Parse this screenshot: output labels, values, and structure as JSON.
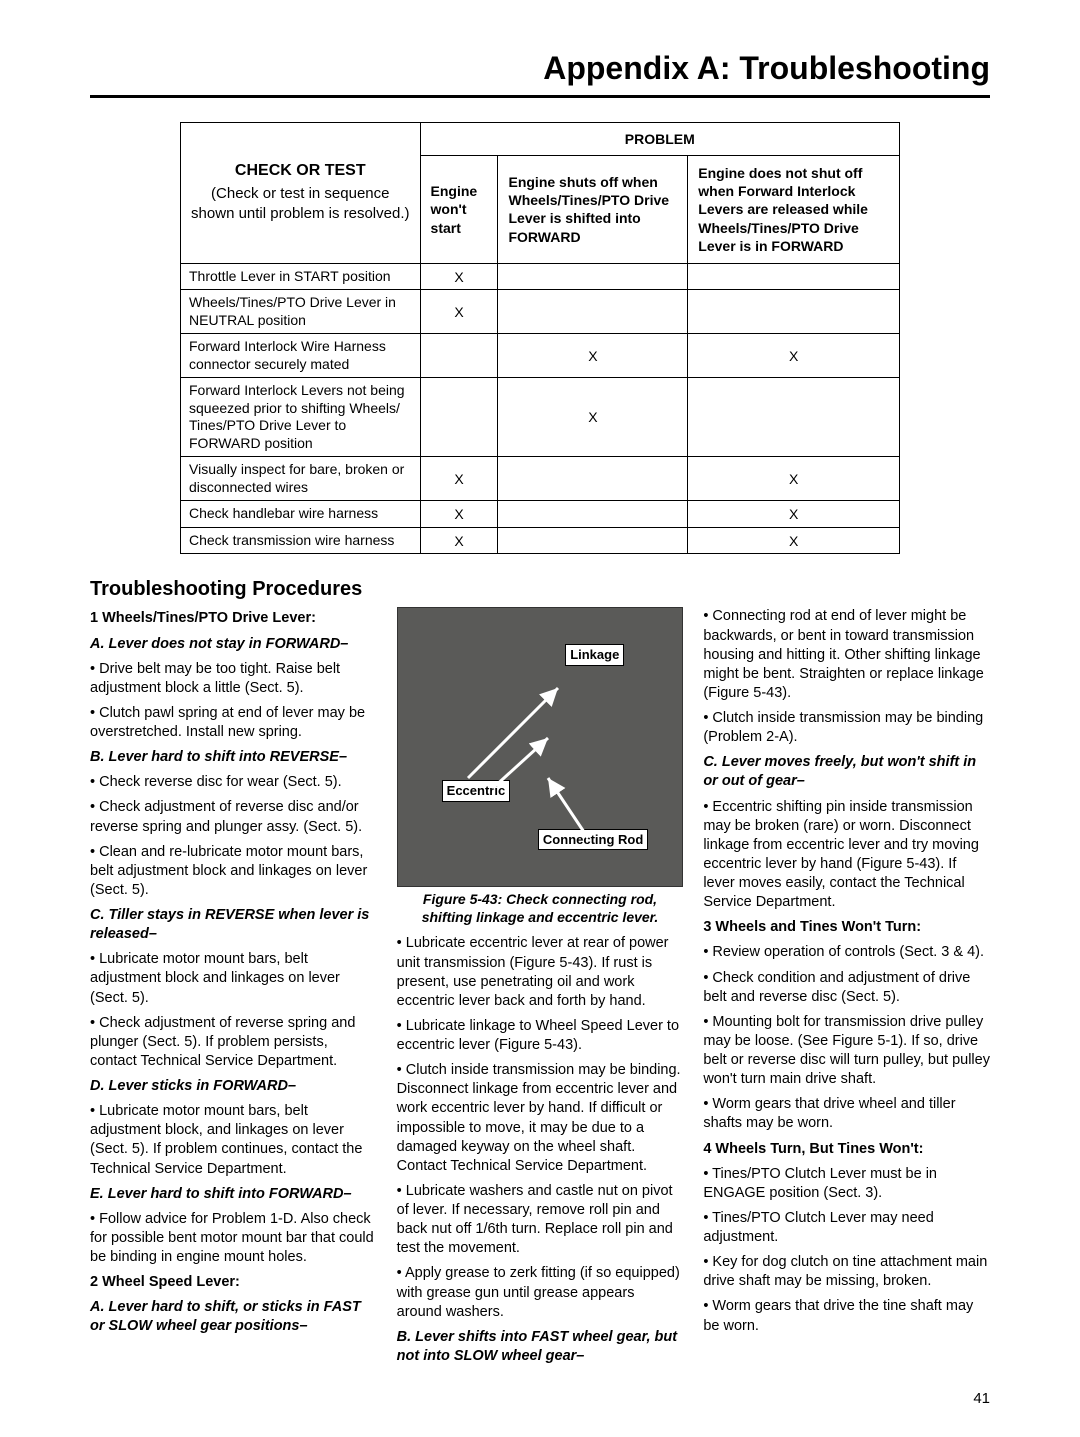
{
  "header": {
    "title": "Appendix A:  Troubleshooting",
    "page_number": "41"
  },
  "table": {
    "check_test_title": "CHECK OR TEST",
    "check_test_sub": "(Check or test in sequence shown until problem is resolved.)",
    "problem_label": "PROBLEM",
    "columns": [
      "Engine won't start",
      "Engine shuts off when Wheels/Tines/PTO Drive Lever is shifted into FORWARD",
      "Engine does not shut off when Forward Interlock Levers are released while Wheels/Tines/PTO Drive Lever is in FORWARD"
    ],
    "rows": [
      {
        "label": "Throttle Lever in START position",
        "marks": [
          "X",
          "",
          ""
        ]
      },
      {
        "label": "Wheels/Tines/PTO Drive Lever in NEUTRAL position",
        "marks": [
          "X",
          "",
          ""
        ]
      },
      {
        "label": "Forward Interlock Wire Harness connector securely mated",
        "marks": [
          "",
          "X",
          "X"
        ]
      },
      {
        "label": "Forward Interlock Levers not being squeezed prior to shifting Wheels/ Tines/PTO Drive Lever to FORWARD position",
        "marks": [
          "",
          "X",
          ""
        ]
      },
      {
        "label": "Visually inspect for bare, broken or disconnected wires",
        "marks": [
          "X",
          "",
          "X"
        ]
      },
      {
        "label": "Check handlebar wire harness",
        "marks": [
          "X",
          "",
          "X"
        ]
      },
      {
        "label": "Check transmission wire harness",
        "marks": [
          "X",
          "",
          "X"
        ]
      }
    ]
  },
  "section_title": "Troubleshooting Procedures",
  "col1": {
    "h1": "1  Wheels/Tines/PTO Drive Lever:",
    "a_head": "A.  Lever does not stay in FORWARD–",
    "a1": "• Drive belt may be too tight.  Raise belt adjustment block a little (Sect. 5).",
    "a2": "• Clutch pawl spring at end of lever may be overstretched.  Install new spring.",
    "b_head": "B.  Lever hard to shift into REVERSE–",
    "b1": "• Check reverse disc for wear (Sect. 5).",
    "b2": "• Check adjustment of reverse disc and/or reverse spring and plunger assy. (Sect. 5).",
    "b3": "• Clean and re-lubricate motor mount bars, belt adjustment block and linkages on lever (Sect. 5).",
    "c_head": "C.  Tiller stays in REVERSE when lever is released–",
    "c1": "• Lubricate motor mount bars, belt adjustment block and linkages on lever (Sect. 5).",
    "c2": "• Check adjustment of reverse spring and plunger (Sect. 5).  If problem persists, contact Technical Service Department.",
    "d_head": "D.  Lever sticks in FORWARD–",
    "d1": "• Lubricate motor mount bars, belt adjustment block, and linkages on lever (Sect. 5). If problem continues, contact the Technical Service Department.",
    "e_head": "E.  Lever hard to shift into FORWARD–",
    "e1": "• Follow advice for Problem 1-D.  Also check for possible bent motor mount bar that could be binding in engine mount holes.",
    "h2": "2  Wheel Speed Lever:",
    "wsl_a_head": "A.  Lever hard to shift, or sticks in FAST or SLOW wheel gear positions–"
  },
  "figure": {
    "tag_linkage": "Linkage",
    "tag_eccentric": "Eccentric",
    "tag_rod": "Connecting Rod",
    "caption": "Figure 5-43: Check connecting rod, shifting linkage and eccentric lever."
  },
  "col2": {
    "p1": "• Lubricate eccentric lever at rear of power unit transmission (Figure 5-43).  If rust is present, use penetrating oil and work eccentric lever back and forth by hand.",
    "p2": "•  Lubricate linkage to Wheel Speed Lever to eccentric lever (Figure 5-43).",
    "p3": "• Clutch inside transmission may be binding. Disconnect linkage from eccentric lever and work eccentric lever by hand. If difficult or impossible to move, it may be due to a damaged keyway on the wheel shaft. Contact Technical Service Department.",
    "p4": "•  Lubricate washers and castle nut on pivot of lever.  If necessary, remove roll pin and back nut off 1/6th turn.  Replace roll pin and test the movement.",
    "p5": "•  Apply grease to zerk fitting (if so equipped) with grease gun until grease appears around washers."
  },
  "col3": {
    "b_head": "B.  Lever shifts into FAST wheel gear, but not into SLOW wheel gear–",
    "b1": "• Connecting rod at end of lever might be backwards, or bent in toward transmission housing and hitting it.  Other shifting linkage might be bent.  Straighten or replace linkage (Figure 5-43).",
    "b2": "•  Clutch inside transmission may be binding (Problem 2-A).",
    "c_head": "C.  Lever moves freely, but won't shift in or out of gear–",
    "c1": "• Eccentric shifting pin inside transmission may be broken (rare) or worn.  Disconnect linkage from eccentric lever and try moving eccentric lever by hand (Figure 5-43).  If lever moves easily, contact the Technical Service Department.",
    "h3": "3  Wheels and Tines Won't Turn:",
    "h3_1": "• Review operation of controls (Sect. 3 & 4).",
    "h3_2": "•  Check condition and adjustment of drive belt and reverse disc (Sect. 5).",
    "h3_3": "•  Mounting bolt for transmission drive pulley may be loose.  (See Figure 5-1).  If so, drive belt or reverse disc will turn pulley, but pulley won't turn main drive shaft.",
    "h3_4": "•  Worm gears that drive wheel and tiller shafts may be worn.",
    "h4": "4  Wheels Turn, But Tines Won't:",
    "h4_1": "• Tines/PTO Clutch Lever must be in ENGAGE position (Sect. 3).",
    "h4_2": "• Tines/PTO Clutch Lever may need adjustment.",
    "h4_3": "•  Key for dog clutch on tine attachment main drive shaft may be missing, broken.",
    "h4_4": "•  Worm gears that drive the tine shaft may be worn."
  }
}
